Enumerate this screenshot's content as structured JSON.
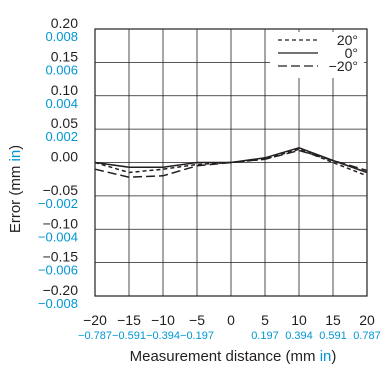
{
  "chart_data": {
    "type": "line",
    "xlabel": {
      "main": "Measurement distance (mm ",
      "unit": "in",
      "close": ")"
    },
    "ylabel": {
      "main": "Error (mm ",
      "unit": "in",
      "close": ")"
    },
    "xlim": [
      -20,
      20
    ],
    "ylim": [
      -0.2,
      0.2
    ],
    "grid": true,
    "legend_position": "top-right",
    "x_ticks_mm": [
      "−20",
      "−15",
      "−10",
      "−5",
      "0",
      "5",
      "10",
      "15",
      "20"
    ],
    "x_ticks_in": [
      "−0.787",
      "−0.591",
      "−0.394",
      "−0.197",
      "",
      "0.197",
      "0.394",
      "0.591",
      "0.787"
    ],
    "y_ticks": [
      {
        "v": 0.2,
        "mm": "0.20",
        "in": "0.008"
      },
      {
        "v": 0.15,
        "mm": "0.15",
        "in": "0.006"
      },
      {
        "v": 0.1,
        "mm": "0.10",
        "in": "0.004"
      },
      {
        "v": 0.05,
        "mm": "0.05",
        "in": "0.002"
      },
      {
        "v": 0.0,
        "mm": "0.00",
        "in": ""
      },
      {
        "v": -0.05,
        "mm": "−0.05",
        "in": "−0.002"
      },
      {
        "v": -0.1,
        "mm": "−0.10",
        "in": "−0.004"
      },
      {
        "v": -0.15,
        "mm": "−0.15",
        "in": "−0.006"
      },
      {
        "v": -0.2,
        "mm": "−0.20",
        "in": "−0.008"
      }
    ],
    "series": [
      {
        "name": "20°",
        "dash": "short",
        "x": [
          -20,
          -15,
          -10,
          -5,
          0,
          5,
          10,
          15,
          20
        ],
        "y": [
          0.0,
          -0.015,
          -0.01,
          -0.003,
          0.0,
          0.005,
          0.02,
          0.0,
          -0.02
        ]
      },
      {
        "name": "0°",
        "dash": "solid",
        "x": [
          -20,
          -15,
          -10,
          -5,
          0,
          5,
          10,
          15,
          20
        ],
        "y": [
          0.0,
          -0.007,
          -0.007,
          0.0,
          0.0,
          0.007,
          0.022,
          0.003,
          -0.015
        ]
      },
      {
        "name": "−20°",
        "dash": "long",
        "x": [
          -20,
          -15,
          -10,
          -5,
          0,
          5,
          10,
          15,
          20
        ],
        "y": [
          -0.01,
          -0.022,
          -0.02,
          -0.005,
          0.0,
          0.005,
          0.018,
          0.003,
          -0.012
        ]
      }
    ]
  }
}
